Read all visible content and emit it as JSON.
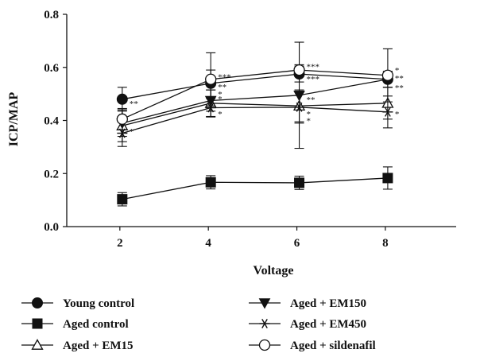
{
  "chart_data": {
    "type": "line",
    "xlabel": "Voltage",
    "ylabel": "ICP/MAP",
    "xlim": [
      0.8,
      9.6
    ],
    "ylim": [
      0,
      0.8
    ],
    "x_ticks": [
      2,
      4,
      6,
      8
    ],
    "x_tick_labels": [
      "2",
      "4",
      "6",
      "8"
    ],
    "y_ticks": [
      0,
      0.2,
      0.4,
      0.6,
      0.8
    ],
    "y_tick_labels": [
      "0.0",
      "0.2",
      "0.4",
      "0.6",
      "0.8"
    ],
    "x": [
      2,
      4,
      6,
      8
    ],
    "legend_position": "bottom",
    "series": [
      {
        "name": "Young control",
        "marker": "filled-circle",
        "values": [
          0.48,
          0.54,
          0.575,
          0.555
        ],
        "errors": [
          0.045,
          0.05,
          0.03,
          0.03
        ]
      },
      {
        "name": "Aged control",
        "marker": "filled-square",
        "values": [
          0.103,
          0.167,
          0.165,
          0.183
        ],
        "errors": [
          0.025,
          0.025,
          0.025,
          0.042
        ]
      },
      {
        "name": "Aged + EM15",
        "marker": "open-triangle",
        "values": [
          0.38,
          0.465,
          0.455,
          0.465
        ],
        "errors": [
          0.06,
          0.05,
          0.06,
          0.06
        ]
      },
      {
        "name": "Aged + EM150",
        "marker": "filled-triangle-down",
        "values": [
          0.39,
          0.475,
          0.495,
          0.555
        ],
        "errors": [
          0.05,
          0.04,
          0.2,
          0.03
        ]
      },
      {
        "name": "Aged + EM450",
        "marker": "asterisk",
        "values": [
          0.352,
          0.448,
          0.45,
          0.432
        ],
        "errors": [
          0.05,
          0.035,
          0.06,
          0.06
        ]
      },
      {
        "name": "Aged + sildenafil",
        "marker": "open-circle",
        "values": [
          0.405,
          0.555,
          0.59,
          0.57
        ],
        "errors": [
          0.04,
          0.1,
          0.02,
          0.1
        ]
      }
    ],
    "annotations": [
      {
        "text": "**",
        "x": 2,
        "y": 0.465
      },
      {
        "text": "*",
        "x": 2,
        "y": 0.36
      },
      {
        "text": "***",
        "x": 4,
        "y": 0.565
      },
      {
        "text": "**",
        "x": 4,
        "y": 0.528
      },
      {
        "text": "*",
        "x": 4,
        "y": 0.5
      },
      {
        "text": "*",
        "x": 4,
        "y": 0.482
      },
      {
        "text": "*",
        "x": 4,
        "y": 0.425
      },
      {
        "text": "***",
        "x": 6,
        "y": 0.603
      },
      {
        "text": "***",
        "x": 6,
        "y": 0.558
      },
      {
        "text": "**",
        "x": 6,
        "y": 0.48
      },
      {
        "text": "*",
        "x": 6,
        "y": 0.425
      },
      {
        "text": "*",
        "x": 6,
        "y": 0.4
      },
      {
        "text": "*",
        "x": 8,
        "y": 0.59
      },
      {
        "text": "**",
        "x": 8,
        "y": 0.56
      },
      {
        "text": "**",
        "x": 8,
        "y": 0.525
      },
      {
        "text": "*",
        "x": 8,
        "y": 0.425
      }
    ]
  }
}
